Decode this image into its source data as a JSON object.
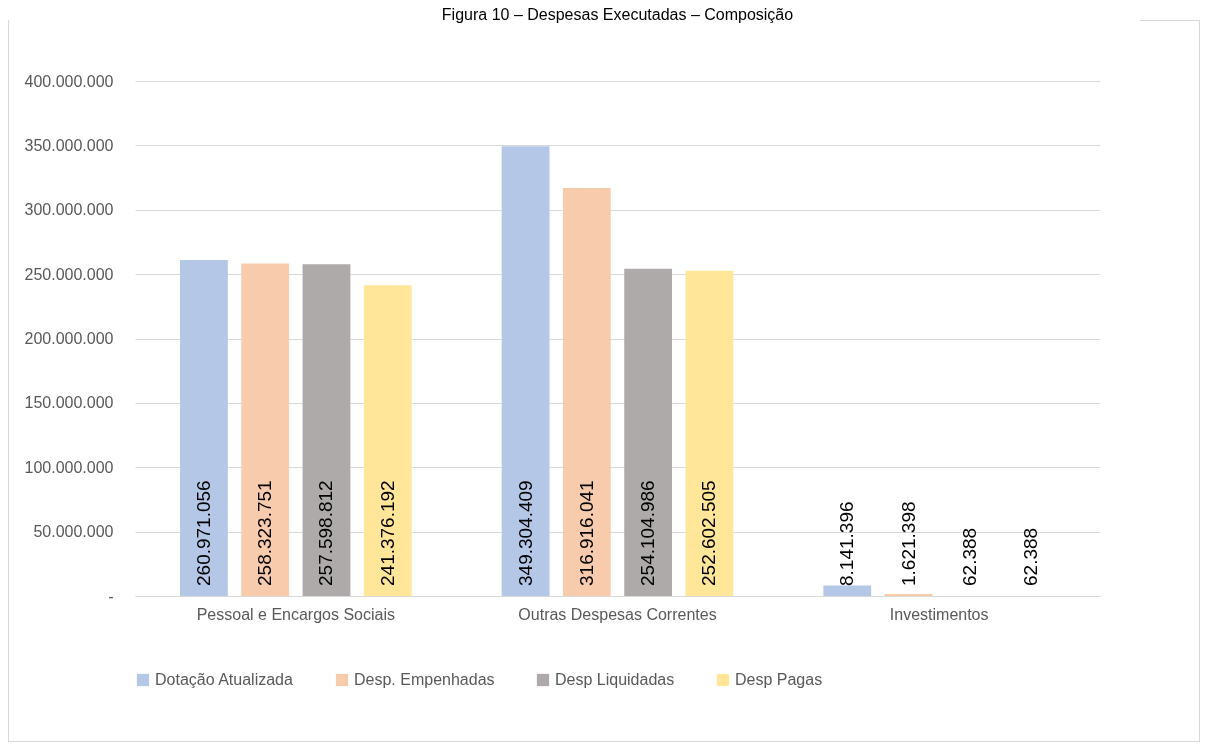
{
  "chart_data": {
    "type": "bar",
    "title": "Figura 10 – Despesas Executadas – Composição",
    "categories": [
      "Pessoal e Encargos Sociais",
      "Outras Despesas Correntes",
      "Investimentos"
    ],
    "series": [
      {
        "name": "Dotação Atualizada",
        "color": "#b4c7e7",
        "values": [
          260971056,
          349304409,
          8141396
        ],
        "value_labels": [
          "260.971.056",
          "349.304.409",
          "8.141.396"
        ]
      },
      {
        "name": "Desp. Empenhadas",
        "color": "#f8cbad",
        "values": [
          258323751,
          316916041,
          1621398
        ],
        "value_labels": [
          "258.323.751",
          "316.916.041",
          "1.621.398"
        ]
      },
      {
        "name": "Desp Liquidadas",
        "color": "#aeaaaa",
        "values": [
          257598812,
          254104986,
          62388
        ],
        "value_labels": [
          "257.598.812",
          "254.104.986",
          "62.388"
        ]
      },
      {
        "name": "Desp Pagas",
        "color": "#ffe699",
        "values": [
          241376192,
          252602505,
          62388
        ],
        "value_labels": [
          "241.376.192",
          "252.602.505",
          "62.388"
        ]
      }
    ],
    "ylim": [
      0,
      400000000
    ],
    "yticks": [
      {
        "value": 0,
        "label": "-"
      },
      {
        "value": 50000000,
        "label": "50.000.000"
      },
      {
        "value": 100000000,
        "label": "100.000.000"
      },
      {
        "value": 150000000,
        "label": "150.000.000"
      },
      {
        "value": 200000000,
        "label": "200.000.000"
      },
      {
        "value": 250000000,
        "label": "250.000.000"
      },
      {
        "value": 300000000,
        "label": "300.000.000"
      },
      {
        "value": 350000000,
        "label": "350.000.000"
      },
      {
        "value": 400000000,
        "label": "400.000.000"
      }
    ],
    "grid": "y",
    "legend": "bottom"
  }
}
